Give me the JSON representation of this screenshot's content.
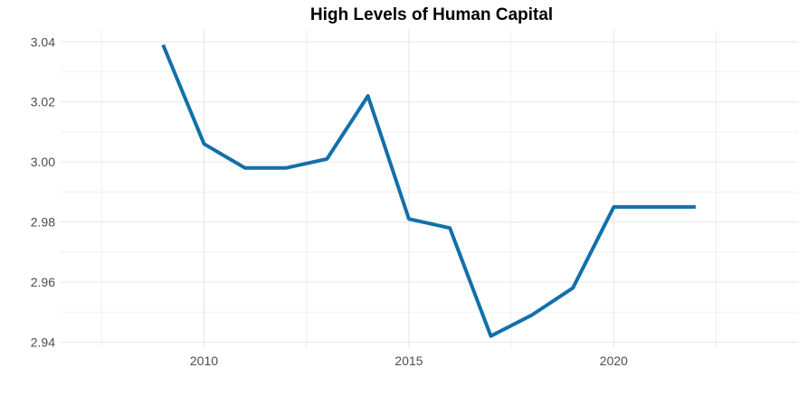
{
  "chart_data": {
    "type": "line",
    "title": "High Levels of Human Capital",
    "xlabel": "",
    "ylabel": "",
    "x": [
      2009,
      2010,
      2011,
      2012,
      2013,
      2014,
      2015,
      2016,
      2017,
      2018,
      2019,
      2020,
      2021,
      2022
    ],
    "series": [
      {
        "values": [
          3.039,
          3.006,
          2.998,
          2.998,
          3.001,
          3.022,
          2.981,
          2.978,
          2.942,
          2.949,
          2.958,
          2.985,
          2.985,
          2.985
        ]
      }
    ],
    "xlim": [
      2006.5,
      2024.5
    ],
    "ylim": [
      2.938,
      3.044
    ],
    "x_ticks": [
      "2010",
      "2015",
      "2020"
    ],
    "y_ticks": [
      "2.94",
      "2.96",
      "2.98",
      "3.00",
      "3.02",
      "3.04"
    ],
    "line_color": "#1170aa",
    "grid": true
  }
}
